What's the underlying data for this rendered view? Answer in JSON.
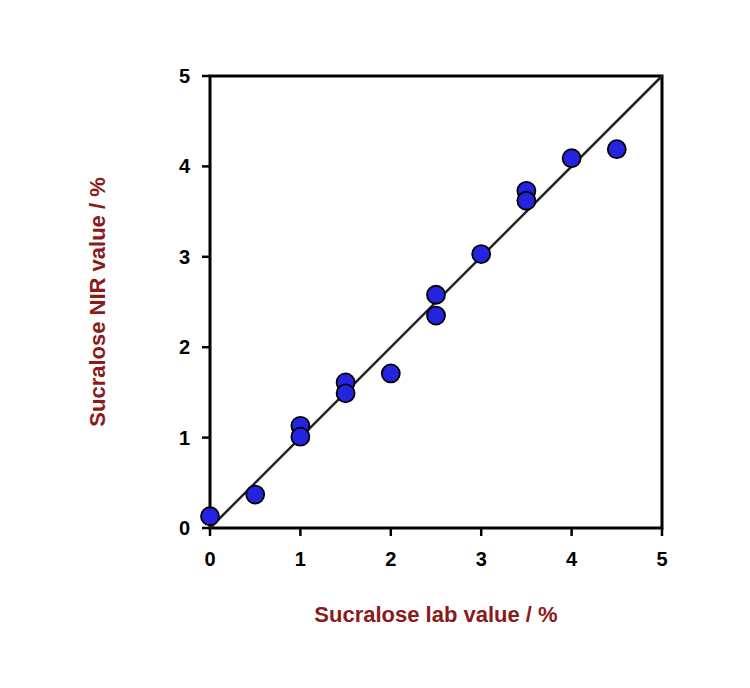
{
  "chart_data": {
    "type": "scatter",
    "x_label": "Sucralose lab value / %",
    "y_label": "Sucralose NIR value / %",
    "xlim": [
      0,
      5
    ],
    "ylim": [
      0,
      5
    ],
    "xticks": [
      0,
      1,
      2,
      3,
      4,
      5
    ],
    "yticks": [
      0,
      1,
      2,
      3,
      4,
      5
    ],
    "grid": false,
    "series": [
      {
        "type": "scatter",
        "marker": "circle",
        "color": "#2323e0",
        "x": [
          0,
          0.5,
          1,
          1,
          1.5,
          1.5,
          2,
          2.5,
          2.5,
          3,
          3.5,
          3.5,
          4,
          4.5
        ],
        "values": [
          0.13,
          0.37,
          1.13,
          1.01,
          1.61,
          1.49,
          1.71,
          2.58,
          2.35,
          3.03,
          3.73,
          3.62,
          4.09,
          4.19
        ]
      },
      {
        "type": "line",
        "line_style": "solid",
        "color": "#222222",
        "x": [
          0,
          5
        ],
        "values": [
          0,
          5
        ]
      }
    ]
  }
}
